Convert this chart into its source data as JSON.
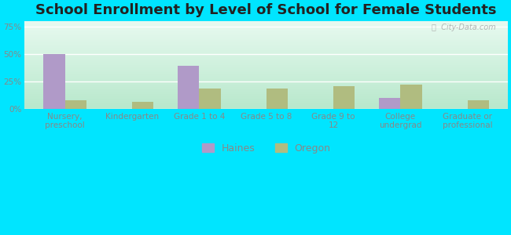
{
  "title": "School Enrollment by Level of School for Female Students",
  "categories": [
    "Nursery,\npreschool",
    "Kindergarten",
    "Grade 1 to 4",
    "Grade 5 to 8",
    "Grade 9 to\n12",
    "College\nundergrad",
    "Graduate or\nprofessional"
  ],
  "haines_values": [
    50,
    0,
    39,
    0,
    0,
    10,
    0
  ],
  "oregon_values": [
    8,
    7,
    19,
    19,
    21,
    22,
    8
  ],
  "haines_color": "#b09ac8",
  "oregon_color": "#b0bc80",
  "background_outer": "#00e5ff",
  "background_plot_bottom": "#b8e8cc",
  "background_plot_top": "#e8faf0",
  "yticks": [
    0,
    25,
    50,
    75
  ],
  "ylim": [
    0,
    80
  ],
  "bar_width": 0.32,
  "title_fontsize": 13,
  "tick_fontsize": 7.5,
  "legend_labels": [
    "Haines",
    "Oregon"
  ],
  "grid_color": "#d0ead8",
  "tick_color": "#888888"
}
